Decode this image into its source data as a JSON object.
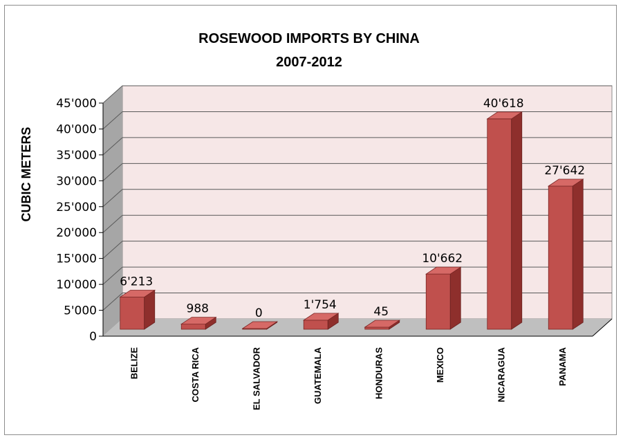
{
  "chart_data": {
    "type": "bar",
    "title": "ROSEWOOD IMPORTS BY CHINA",
    "subtitle": "2007-2012",
    "ylabel": "CUBIC METERS",
    "xlabel": "",
    "ylim": [
      0,
      45000
    ],
    "yticks": [
      "0",
      "5'000",
      "10'000",
      "15'000",
      "20'000",
      "25'000",
      "30'000",
      "35'000",
      "40'000",
      "45'000"
    ],
    "categories": [
      "BELIZE",
      "COSTA RICA",
      "EL SALVADOR",
      "GUATEMALA",
      "HONDURAS",
      "MEXICO",
      "NICARAGUA",
      "PANAMA"
    ],
    "values": [
      6213,
      988,
      0,
      1754,
      45,
      10662,
      40618,
      27642
    ],
    "value_labels": [
      "6'213",
      "988",
      "0",
      "1'754",
      "45",
      "10'662",
      "40'618",
      "27'642"
    ],
    "grid": true,
    "legend": "none",
    "colors": {
      "bar_front": "#c0504d",
      "bar_side": "#8e2f2c",
      "bar_top": "#d66966",
      "back_wall": "#f6e7e7",
      "side_wall": "#a6a6a6",
      "floor": "#bfbfbf",
      "gridline": "#595959"
    }
  }
}
